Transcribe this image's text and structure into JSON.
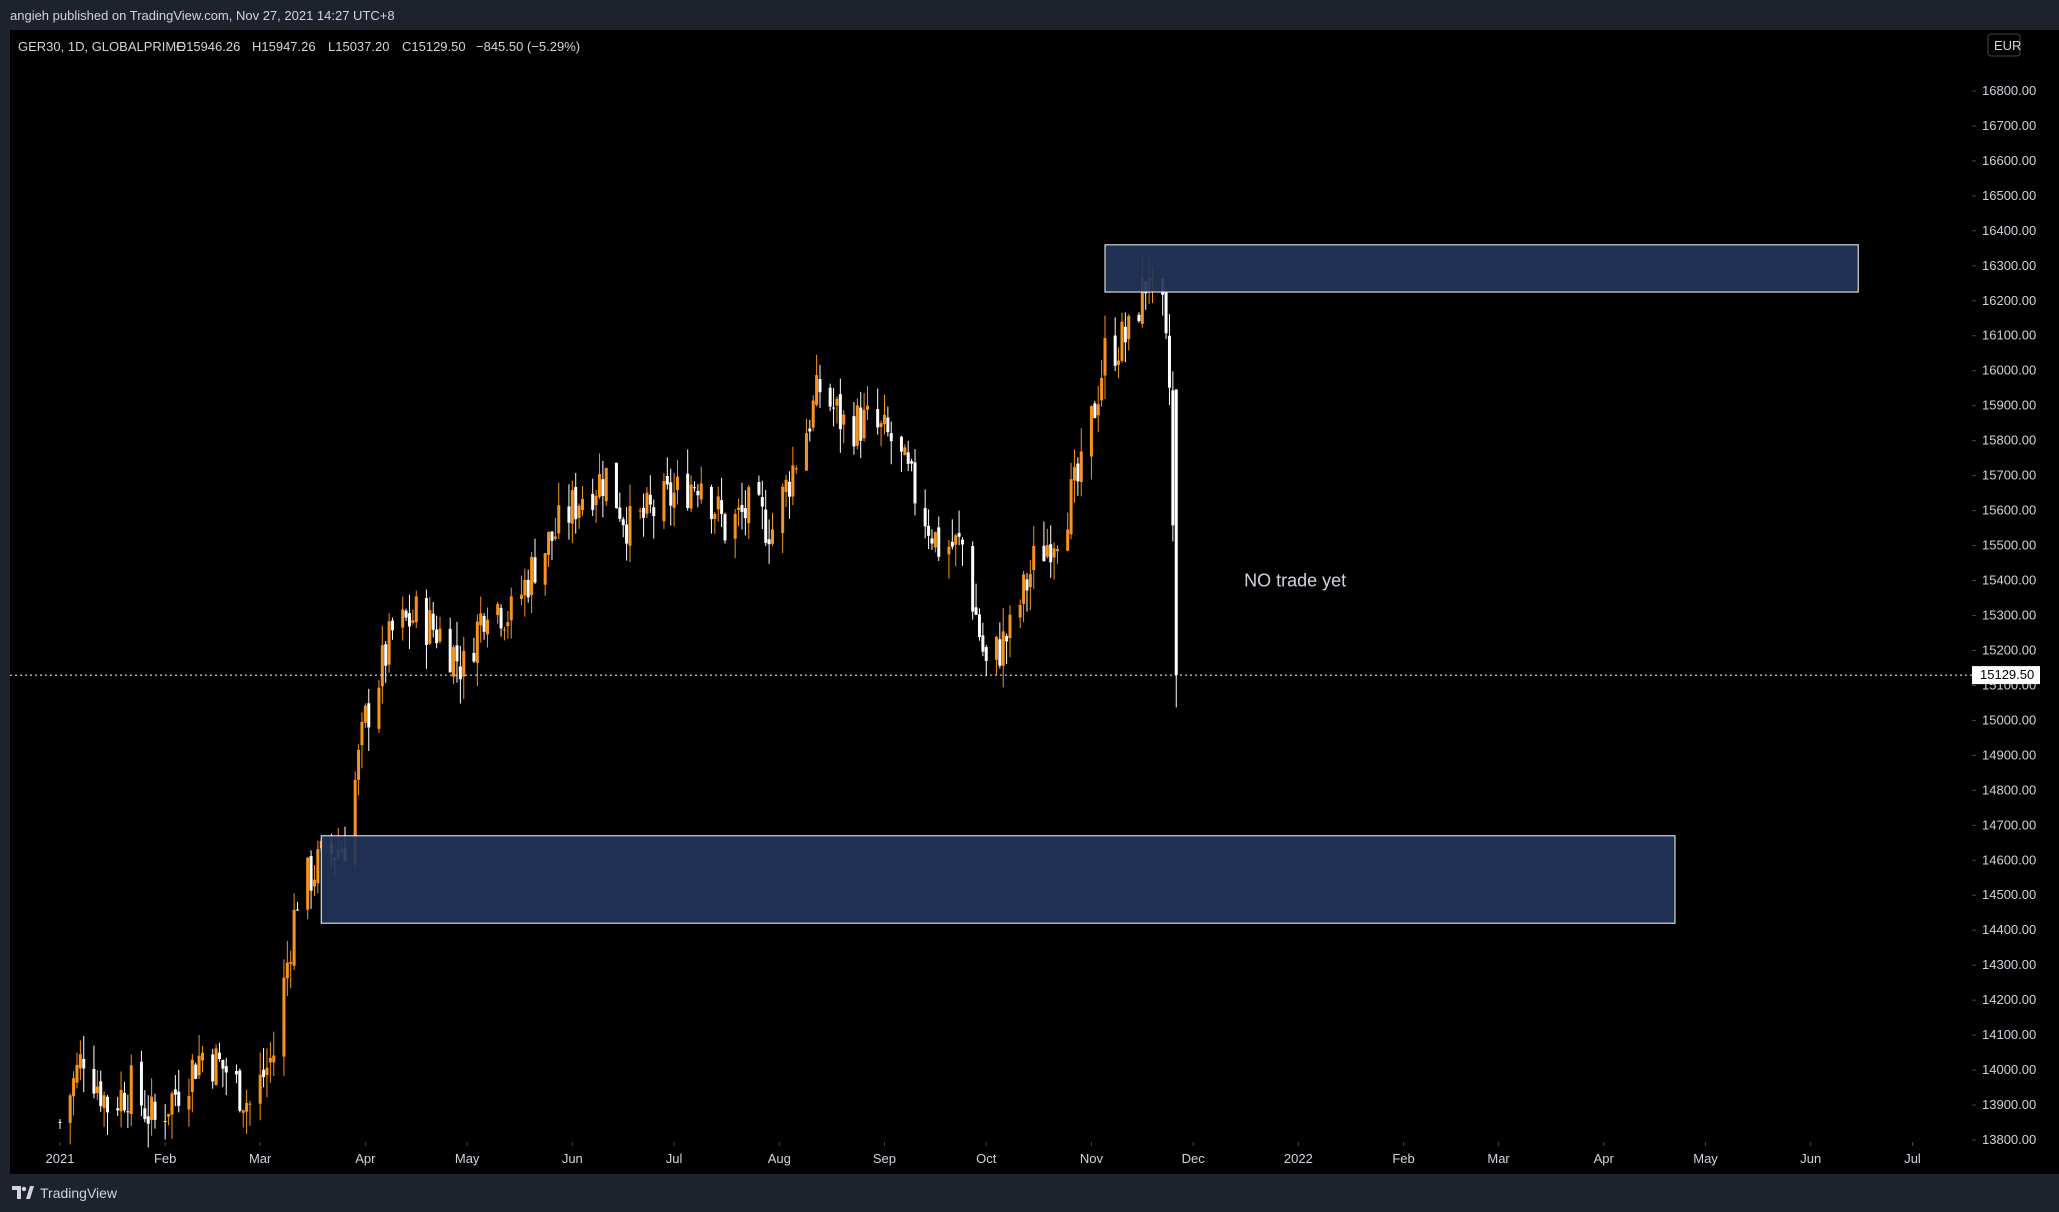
{
  "header": {
    "published": "angieh published on TradingView.com, Nov 27, 2021 14:27 UTC+8"
  },
  "footer": {
    "brand": "TradingView"
  },
  "legend": {
    "symbol": "GER30, 1D, GLOBALPRIME",
    "open": "O15946.26",
    "high": "H15947.26",
    "low": "L15037.20",
    "close": "C15129.50",
    "change": "−845.50 (−5.29%)"
  },
  "currency_badge": "EUR",
  "colors": {
    "background": "#000000",
    "frame": "#1e222d",
    "up_candle": "#f7931e",
    "down_candle": "#ffffff",
    "zone_fill": "#22345a",
    "zone_stroke": "#ffffff",
    "text": "#d1d4dc"
  },
  "chart_data": {
    "type": "candlestick",
    "symbol": "GER30",
    "interval": "1D",
    "y_axis": {
      "range": [
        13800,
        16900
      ],
      "ticks": [
        13800,
        13900,
        14000,
        14100,
        14200,
        14300,
        14400,
        14500,
        14600,
        14700,
        14800,
        14900,
        15000,
        15100,
        15200,
        15300,
        15400,
        15500,
        15600,
        15700,
        15800,
        15900,
        16000,
        16100,
        16200,
        16300,
        16400,
        16500,
        16600,
        16700,
        16800
      ],
      "tick_labels": [
        "13800.00",
        "13900.00",
        "14000.00",
        "14100.00",
        "14200.00",
        "14300.00",
        "14400.00",
        "14500.00",
        "14600.00",
        "14700.00",
        "14800.00",
        "14900.00",
        "15000.00",
        "15100.00",
        "15200.00",
        "15300.00",
        "15400.00",
        "15500.00",
        "15600.00",
        "15700.00",
        "15800.00",
        "15900.00",
        "16000.00",
        "16100.00",
        "16200.00",
        "16300.00",
        "16400.00",
        "16500.00",
        "16600.00",
        "16700.00",
        "16800.00"
      ]
    },
    "x_axis": {
      "range": [
        "2021-01-01",
        "2022-07-15"
      ],
      "ticks": [
        {
          "date": "2021-01-01",
          "label": "2021"
        },
        {
          "date": "2021-02-01",
          "label": "Feb"
        },
        {
          "date": "2021-03-01",
          "label": "Mar"
        },
        {
          "date": "2021-04-01",
          "label": "Apr"
        },
        {
          "date": "2021-05-01",
          "label": "May"
        },
        {
          "date": "2021-06-01",
          "label": "Jun"
        },
        {
          "date": "2021-07-01",
          "label": "Jul"
        },
        {
          "date": "2021-08-01",
          "label": "Aug"
        },
        {
          "date": "2021-09-01",
          "label": "Sep"
        },
        {
          "date": "2021-10-01",
          "label": "Oct"
        },
        {
          "date": "2021-11-01",
          "label": "Nov"
        },
        {
          "date": "2021-12-01",
          "label": "Dec"
        },
        {
          "date": "2022-01-01",
          "label": "2022"
        },
        {
          "date": "2022-02-01",
          "label": "Feb"
        },
        {
          "date": "2022-03-01",
          "label": "Mar"
        },
        {
          "date": "2022-04-01",
          "label": "Apr"
        },
        {
          "date": "2022-05-01",
          "label": "May"
        },
        {
          "date": "2022-06-01",
          "label": "Jun"
        },
        {
          "date": "2022-07-01",
          "label": "Jul"
        }
      ]
    },
    "price_path": [
      {
        "date": "2021-01-01",
        "close": 13850
      },
      {
        "date": "2021-01-08",
        "close": 14050
      },
      {
        "date": "2021-01-15",
        "close": 13900
      },
      {
        "date": "2021-01-22",
        "close": 13950
      },
      {
        "date": "2021-01-29",
        "close": 13850
      },
      {
        "date": "2021-02-05",
        "close": 13950
      },
      {
        "date": "2021-02-12",
        "close": 14050
      },
      {
        "date": "2021-02-19",
        "close": 14000
      },
      {
        "date": "2021-02-26",
        "close": 13900
      },
      {
        "date": "2021-03-05",
        "close": 14050
      },
      {
        "date": "2021-03-12",
        "close": 14500
      },
      {
        "date": "2021-03-19",
        "close": 14600
      },
      {
        "date": "2021-03-26",
        "close": 14650
      },
      {
        "date": "2021-04-01",
        "close": 15000
      },
      {
        "date": "2021-04-09",
        "close": 15250
      },
      {
        "date": "2021-04-16",
        "close": 15300
      },
      {
        "date": "2021-04-23",
        "close": 15250
      },
      {
        "date": "2021-04-30",
        "close": 15150
      },
      {
        "date": "2021-05-07",
        "close": 15350
      },
      {
        "date": "2021-05-14",
        "close": 15300
      },
      {
        "date": "2021-05-21",
        "close": 15450
      },
      {
        "date": "2021-05-28",
        "close": 15550
      },
      {
        "date": "2021-06-04",
        "close": 15650
      },
      {
        "date": "2021-06-11",
        "close": 15700
      },
      {
        "date": "2021-06-18",
        "close": 15550
      },
      {
        "date": "2021-06-25",
        "close": 15600
      },
      {
        "date": "2021-07-02",
        "close": 15650
      },
      {
        "date": "2021-07-09",
        "close": 15700
      },
      {
        "date": "2021-07-16",
        "close": 15550
      },
      {
        "date": "2021-07-23",
        "close": 15600
      },
      {
        "date": "2021-07-30",
        "close": 15550
      },
      {
        "date": "2021-08-06",
        "close": 15750
      },
      {
        "date": "2021-08-13",
        "close": 15950
      },
      {
        "date": "2021-08-20",
        "close": 15850
      },
      {
        "date": "2021-08-27",
        "close": 15850
      },
      {
        "date": "2021-09-03",
        "close": 15800
      },
      {
        "date": "2021-09-10",
        "close": 15650
      },
      {
        "date": "2021-09-17",
        "close": 15500
      },
      {
        "date": "2021-09-24",
        "close": 15500
      },
      {
        "date": "2021-10-01",
        "close": 15150
      },
      {
        "date": "2021-10-08",
        "close": 15250
      },
      {
        "date": "2021-10-15",
        "close": 15450
      },
      {
        "date": "2021-10-22",
        "close": 15550
      },
      {
        "date": "2021-10-29",
        "close": 15700
      },
      {
        "date": "2021-11-05",
        "close": 16050
      },
      {
        "date": "2021-11-12",
        "close": 16100
      },
      {
        "date": "2021-11-17",
        "close": 16250
      },
      {
        "date": "2021-11-18",
        "close": 16300
      },
      {
        "date": "2021-11-19",
        "close": 16200
      },
      {
        "date": "2021-11-22",
        "close": 16150
      },
      {
        "date": "2021-11-23",
        "close": 16050
      },
      {
        "date": "2021-11-24",
        "close": 15950
      },
      {
        "date": "2021-11-26",
        "close": 15129.5
      }
    ],
    "last_price": 15129.5,
    "last_price_label": "15129.50",
    "zones": [
      {
        "name": "supply",
        "x_start": "2021-11-05",
        "x_end": "2022-06-15",
        "y_low": 16225,
        "y_high": 16360
      },
      {
        "name": "demand",
        "x_start": "2021-03-19",
        "x_end": "2022-04-22",
        "y_low": 14420,
        "y_high": 14670
      }
    ],
    "annotation": {
      "text": "NO trade yet",
      "date": "2021-12-16",
      "price": 15400
    }
  }
}
